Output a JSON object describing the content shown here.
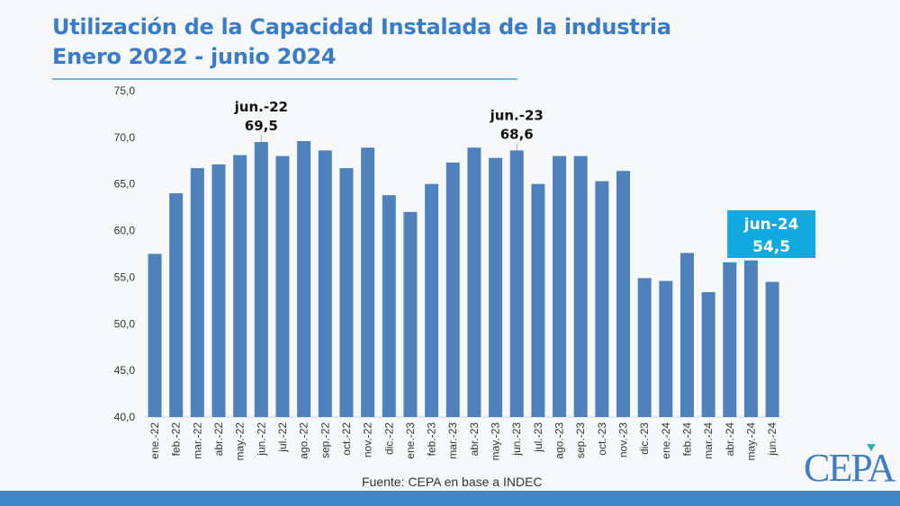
{
  "header": {
    "title_line1": "Utilización de la Capacidad Instalada de la industria",
    "title_line2": "Enero 2022 - junio 2024"
  },
  "source": "Fuente: CEPA en base a INDEC",
  "logo": "CEPA",
  "colors": {
    "bar": "#4f81bd",
    "title": "#3a7cc6",
    "highlight": "#12a8e0"
  },
  "chart_data": {
    "type": "bar",
    "title": "Utilización de la Capacidad Instalada de la industria Enero 2022 - junio 2024",
    "xlabel": "",
    "ylabel": "",
    "ylim": [
      40,
      75
    ],
    "yticks": [
      "40,0",
      "45,0",
      "50,0",
      "55,0",
      "60,0",
      "65,0",
      "70,0",
      "75,0"
    ],
    "categories": [
      "ene.-22",
      "feb.-22",
      "mar.-22",
      "abr.-22",
      "may.-22",
      "jun.-22",
      "jul.-22",
      "ago.-22",
      "sep.-22",
      "oct.-22",
      "nov.-22",
      "dic.-22",
      "ene.-23",
      "feb.-23",
      "mar.-23",
      "abr.-23",
      "may.-23",
      "jun.-23",
      "jul.-23",
      "ago.-23",
      "sep.-23",
      "oct.-23",
      "nov.-23",
      "dic.-23",
      "ene.-24",
      "feb.-24",
      "mar.-24",
      "abr.-24",
      "may.-24",
      "jun.-24"
    ],
    "values": [
      57.5,
      64.0,
      66.7,
      67.1,
      68.1,
      69.5,
      68.0,
      69.6,
      68.6,
      66.7,
      68.9,
      63.8,
      62.0,
      65.0,
      67.3,
      68.9,
      67.8,
      68.6,
      65.0,
      68.0,
      68.0,
      65.3,
      66.4,
      54.9,
      54.6,
      57.6,
      53.4,
      56.6,
      56.8,
      54.5
    ],
    "annotations": [
      {
        "index": 5,
        "label": "jun.-22",
        "value": "69,5"
      },
      {
        "index": 17,
        "label": "jun.-23",
        "value": "68,6"
      },
      {
        "index": 29,
        "label": "jun-24",
        "value": "54,5",
        "highlight": true
      }
    ]
  }
}
